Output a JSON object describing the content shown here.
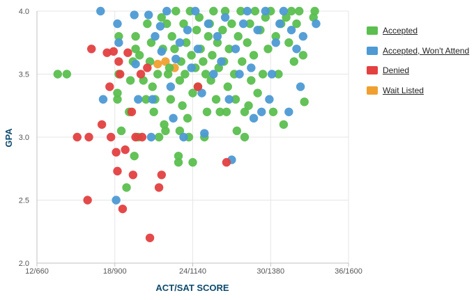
{
  "chart_data": {
    "type": "scatter",
    "xlabel": "ACT/SAT SCORE",
    "ylabel": "GPA",
    "xlim": [
      12,
      36
    ],
    "ylim": [
      2.0,
      4.0
    ],
    "x_ticks": [
      {
        "value": 12,
        "label": "12/660"
      },
      {
        "value": 18,
        "label": "18/900"
      },
      {
        "value": 24,
        "label": "24/1140"
      },
      {
        "value": 30,
        "label": "30/1380"
      },
      {
        "value": 36,
        "label": "36/1600"
      }
    ],
    "y_ticks": [
      {
        "value": 2.0,
        "label": "2.0"
      },
      {
        "value": 2.5,
        "label": "2.5"
      },
      {
        "value": 3.0,
        "label": "3.0"
      },
      {
        "value": 3.5,
        "label": "3.5"
      },
      {
        "value": 4.0,
        "label": "4.0"
      }
    ],
    "grid": true,
    "legend_position": "right",
    "series": [
      {
        "name": "Wait Listed",
        "color": "#f0a030",
        "points": [
          [
            21.3,
            3.58
          ],
          [
            21.9,
            3.6
          ],
          [
            22.6,
            3.55
          ]
        ]
      },
      {
        "name": "Accepted",
        "color": "#5bbf4f",
        "points": [
          [
            13.6,
            3.5
          ],
          [
            14.3,
            3.5
          ],
          [
            18.2,
            3.3
          ],
          [
            18.2,
            3.35
          ],
          [
            18.3,
            3.5
          ],
          [
            18.3,
            3.8
          ],
          [
            18.9,
            2.6
          ],
          [
            18.5,
            3.05
          ],
          [
            19.1,
            3.2
          ],
          [
            19.4,
            3.6
          ],
          [
            19.6,
            3.8
          ],
          [
            19.6,
            3.7
          ],
          [
            19.9,
            3.65
          ],
          [
            19.2,
            3.45
          ],
          [
            19.5,
            2.85
          ],
          [
            19.8,
            3.0
          ],
          [
            20.2,
            3.45
          ],
          [
            20.5,
            3.9
          ],
          [
            20.7,
            3.6
          ],
          [
            20.8,
            3.75
          ],
          [
            20.9,
            3.4
          ],
          [
            21.0,
            3.2
          ],
          [
            21.1,
            3.3
          ],
          [
            21.3,
            3.5
          ],
          [
            21.4,
            3.0
          ],
          [
            21.6,
            3.95
          ],
          [
            21.7,
            3.7
          ],
          [
            21.8,
            3.1
          ],
          [
            21.9,
            3.05
          ],
          [
            22.0,
            3.9
          ],
          [
            22.2,
            3.55
          ],
          [
            22.3,
            3.3
          ],
          [
            22.4,
            3.8
          ],
          [
            22.6,
            3.7
          ],
          [
            22.7,
            4.0
          ],
          [
            22.9,
            2.85
          ],
          [
            22.9,
            2.8
          ],
          [
            23.0,
            3.45
          ],
          [
            23.1,
            3.6
          ],
          [
            23.2,
            3.25
          ],
          [
            23.3,
            3.9
          ],
          [
            23.4,
            3.5
          ],
          [
            23.5,
            3.75
          ],
          [
            23.6,
            3.15
          ],
          [
            23.7,
            3.0
          ],
          [
            23.8,
            4.0
          ],
          [
            23.9,
            3.65
          ],
          [
            24.0,
            3.35
          ],
          [
            24.0,
            2.8
          ],
          [
            24.2,
            3.55
          ],
          [
            24.3,
            3.85
          ],
          [
            24.4,
            3.4
          ],
          [
            24.5,
            3.95
          ],
          [
            24.6,
            3.7
          ],
          [
            24.8,
            3.6
          ],
          [
            25.0,
            3.5
          ],
          [
            25.1,
            3.2
          ],
          [
            25.2,
            3.8
          ],
          [
            25.3,
            3.9
          ],
          [
            25.4,
            3.45
          ],
          [
            25.5,
            3.65
          ],
          [
            25.6,
            4.0
          ],
          [
            25.8,
            3.3
          ],
          [
            25.9,
            3.75
          ],
          [
            26.0,
            3.55
          ],
          [
            26.1,
            3.2
          ],
          [
            26.3,
            3.85
          ],
          [
            26.4,
            3.6
          ],
          [
            26.5,
            4.0
          ],
          [
            26.7,
            3.4
          ],
          [
            26.8,
            3.7
          ],
          [
            27.0,
            3.9
          ],
          [
            27.2,
            3.5
          ],
          [
            27.3,
            3.3
          ],
          [
            27.5,
            3.8
          ],
          [
            27.7,
            4.0
          ],
          [
            27.8,
            3.6
          ],
          [
            28.0,
            3.2
          ],
          [
            28.0,
            3.0
          ],
          [
            28.2,
            3.75
          ],
          [
            28.4,
            3.9
          ],
          [
            28.5,
            3.45
          ],
          [
            28.7,
            3.65
          ],
          [
            28.8,
            4.0
          ],
          [
            29.0,
            3.35
          ],
          [
            29.2,
            3.85
          ],
          [
            29.4,
            3.5
          ],
          [
            29.6,
            3.95
          ],
          [
            29.8,
            3.7
          ],
          [
            30.0,
            4.0
          ],
          [
            30.2,
            3.2
          ],
          [
            30.4,
            3.8
          ],
          [
            30.6,
            3.5
          ],
          [
            30.8,
            3.9
          ],
          [
            31.0,
            3.1
          ],
          [
            31.2,
            3.95
          ],
          [
            31.4,
            3.75
          ],
          [
            31.6,
            4.0
          ],
          [
            31.8,
            3.6
          ],
          [
            32.0,
            3.9
          ],
          [
            32.2,
            4.0
          ],
          [
            32.5,
            3.65
          ],
          [
            32.6,
            3.28
          ],
          [
            33.3,
            3.95
          ],
          [
            33.4,
            4.0
          ],
          [
            28.3,
            3.25
          ],
          [
            26.6,
            3.2
          ],
          [
            24.9,
            3.0
          ],
          [
            22.1,
            3.5
          ],
          [
            20.4,
            3.3
          ],
          [
            23.0,
            3.05
          ],
          [
            27.4,
            3.05
          ]
        ]
      },
      {
        "name": "Accepted, Won't Attend",
        "color": "#4d9ad4",
        "points": [
          [
            16.9,
            4.0
          ],
          [
            17.1,
            3.3
          ],
          [
            18.2,
            3.9
          ],
          [
            18.1,
            2.5
          ],
          [
            18.3,
            3.75
          ],
          [
            19.5,
            3.97
          ],
          [
            19.6,
            3.58
          ],
          [
            19.8,
            3.3
          ],
          [
            20.6,
            3.97
          ],
          [
            20.8,
            3.0
          ],
          [
            20.9,
            3.3
          ],
          [
            21.1,
            3.8
          ],
          [
            21.5,
            3.88
          ],
          [
            21.6,
            3.68
          ],
          [
            22.0,
            4.0
          ],
          [
            22.3,
            3.4
          ],
          [
            22.5,
            3.15
          ],
          [
            22.7,
            3.62
          ],
          [
            23.0,
            3.75
          ],
          [
            23.3,
            3.0
          ],
          [
            23.6,
            3.85
          ],
          [
            23.9,
            3.55
          ],
          [
            24.2,
            4.0
          ],
          [
            24.4,
            3.7
          ],
          [
            24.7,
            3.35
          ],
          [
            24.9,
            3.03
          ],
          [
            25.2,
            3.9
          ],
          [
            25.6,
            3.5
          ],
          [
            25.9,
            3.8
          ],
          [
            26.2,
            3.6
          ],
          [
            26.5,
            3.95
          ],
          [
            26.8,
            3.3
          ],
          [
            27.0,
            2.82
          ],
          [
            27.3,
            3.7
          ],
          [
            27.6,
            3.5
          ],
          [
            27.9,
            3.9
          ],
          [
            28.2,
            4.0
          ],
          [
            28.5,
            3.55
          ],
          [
            28.7,
            3.15
          ],
          [
            29.0,
            3.85
          ],
          [
            29.3,
            3.2
          ],
          [
            29.6,
            4.0
          ],
          [
            29.9,
            3.3
          ],
          [
            30.1,
            3.5
          ],
          [
            30.4,
            3.75
          ],
          [
            30.7,
            3.9
          ],
          [
            31.0,
            4.0
          ],
          [
            31.4,
            3.2
          ],
          [
            31.6,
            3.85
          ],
          [
            32.0,
            3.7
          ],
          [
            32.3,
            3.4
          ],
          [
            32.5,
            3.8
          ],
          [
            33.5,
            3.9
          ]
        ]
      },
      {
        "name": "Denied",
        "color": "#e34040",
        "points": [
          [
            15.1,
            3.0
          ],
          [
            16.0,
            3.0
          ],
          [
            15.9,
            2.5
          ],
          [
            16.2,
            3.7
          ],
          [
            17.0,
            3.1
          ],
          [
            17.4,
            3.67
          ],
          [
            17.6,
            3.4
          ],
          [
            17.7,
            3.0
          ],
          [
            17.9,
            3.68
          ],
          [
            18.1,
            2.88
          ],
          [
            18.2,
            2.73
          ],
          [
            18.3,
            3.6
          ],
          [
            18.4,
            3.5
          ],
          [
            18.6,
            2.43
          ],
          [
            18.8,
            2.9
          ],
          [
            19.0,
            3.67
          ],
          [
            19.3,
            3.2
          ],
          [
            19.4,
            2.7
          ],
          [
            19.6,
            3.0
          ],
          [
            20.1,
            3.0
          ],
          [
            20.0,
            3.5
          ],
          [
            20.5,
            3.55
          ],
          [
            20.7,
            2.2
          ],
          [
            21.4,
            2.6
          ],
          [
            21.6,
            2.7
          ],
          [
            24.4,
            3.4
          ],
          [
            26.6,
            2.8
          ]
        ]
      }
    ]
  },
  "legend": {
    "items": [
      {
        "label": "Accepted",
        "color": "#5bbf4f"
      },
      {
        "label": "Accepted, Won't Attend",
        "color": "#4d9ad4"
      },
      {
        "label": "Denied",
        "color": "#e34040"
      },
      {
        "label": "Wait Listed",
        "color": "#f0a030"
      }
    ]
  }
}
